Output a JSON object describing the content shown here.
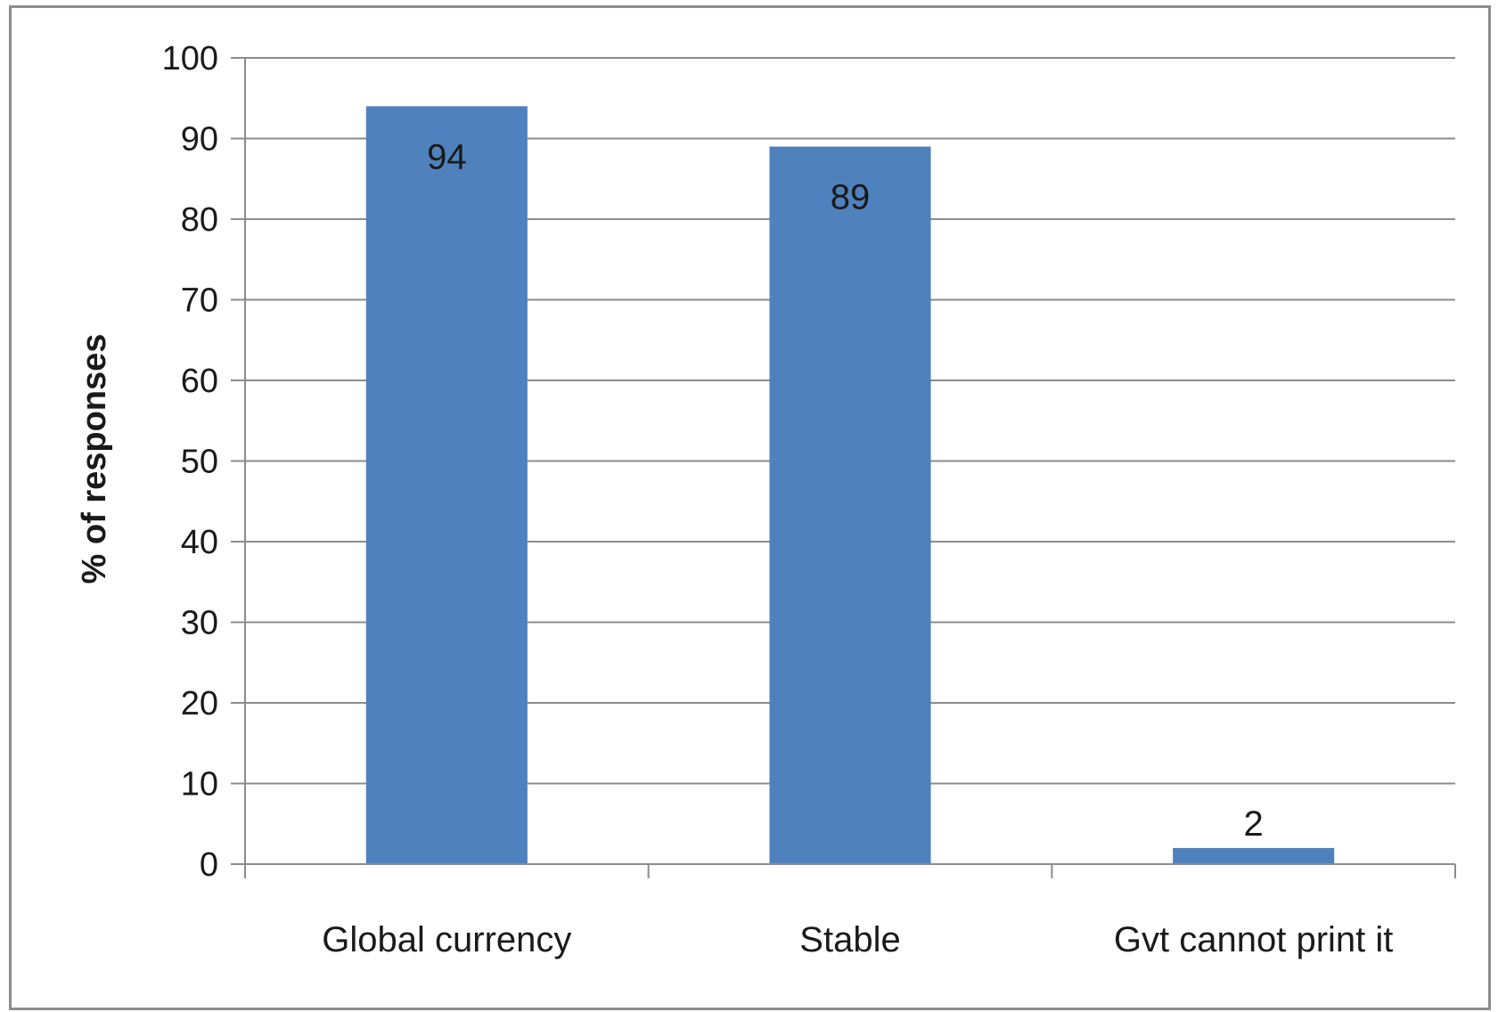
{
  "chart_data": {
    "type": "bar",
    "title": "",
    "xlabel": "",
    "ylabel": "% of responses",
    "categories": [
      "Global currency",
      "Stable",
      "Gvt cannot print it"
    ],
    "values": [
      94,
      89,
      2
    ],
    "data_labels": [
      "94",
      "89",
      "2"
    ],
    "ylim": [
      0,
      100
    ],
    "yticks": [
      0,
      10,
      20,
      30,
      40,
      50,
      60,
      70,
      80,
      90,
      100
    ],
    "grid": true,
    "legend": "none",
    "colors": {
      "bar": "#4f81bd",
      "grid": "#8c8c8c",
      "axis": "#8c8c8c"
    }
  }
}
